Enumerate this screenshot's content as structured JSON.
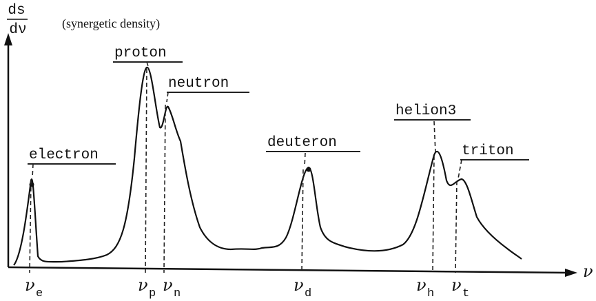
{
  "axes": {
    "y_label_numerator": "ds",
    "y_label_denominator": "dν",
    "y_caption": "(synergetic density)",
    "x_label": "ν"
  },
  "peaks": [
    {
      "label": "electron",
      "symbol": "ν",
      "subscript": "e"
    },
    {
      "label": "proton",
      "symbol": "ν",
      "subscript": "p"
    },
    {
      "label": "neutron",
      "symbol": "ν",
      "subscript": "n"
    },
    {
      "label": "deuteron",
      "symbol": "ν",
      "subscript": "d"
    },
    {
      "label": "helion3",
      "symbol": "ν",
      "subscript": "h"
    },
    {
      "label": "triton",
      "symbol": "ν",
      "subscript": "t"
    }
  ]
}
